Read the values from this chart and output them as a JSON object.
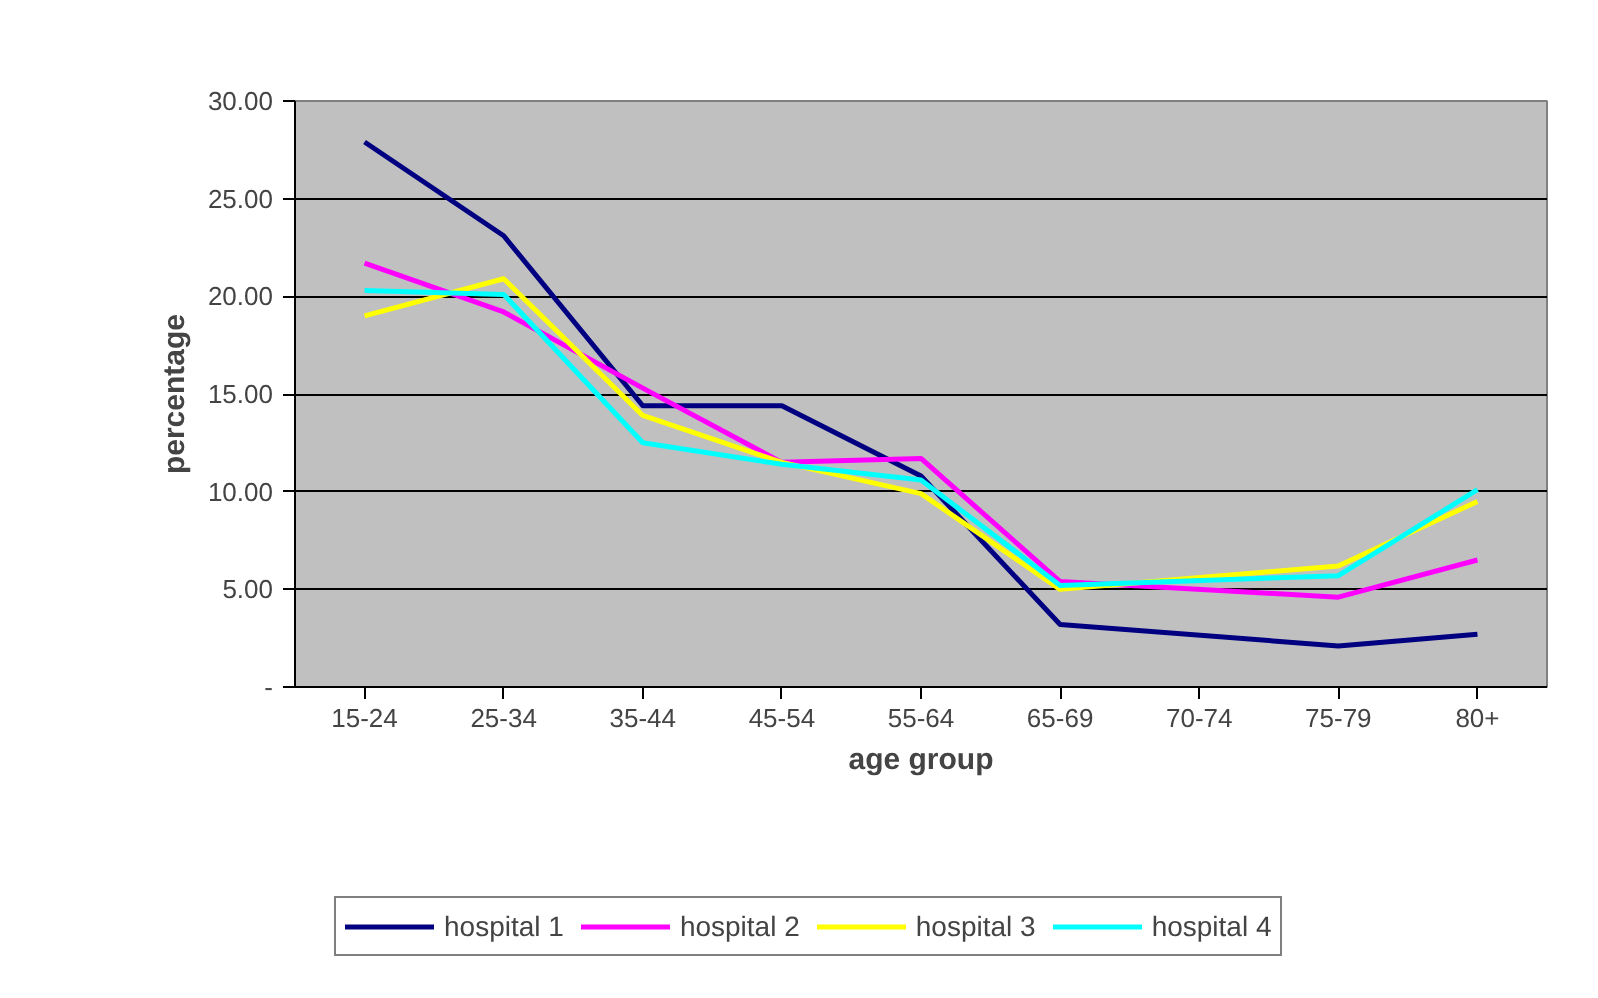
{
  "chart_data": {
    "type": "line",
    "xlabel": "age group",
    "ylabel": "percentage",
    "categories": [
      "15-24",
      "25-34",
      "35-44",
      "45-54",
      "55-64",
      "65-69",
      "70-74",
      "75-79",
      "80+"
    ],
    "ylim": [
      0,
      30
    ],
    "yticks": [
      {
        "value": 0,
        "label": "-"
      },
      {
        "value": 5,
        "label": "5.00"
      },
      {
        "value": 10,
        "label": "10.00"
      },
      {
        "value": 15,
        "label": "15.00"
      },
      {
        "value": 20,
        "label": "20.00"
      },
      {
        "value": 25,
        "label": "25.00"
      },
      {
        "value": 30,
        "label": "30.00"
      }
    ],
    "grid": "y",
    "legend": "bottom",
    "marker": "none",
    "line_style": "solid",
    "series": [
      {
        "name": "hospital 1",
        "color": "#000080",
        "values": [
          27.9,
          23.1,
          14.4,
          14.4,
          10.8,
          3.2,
          null,
          2.1,
          2.7
        ]
      },
      {
        "name": "hospital 2",
        "color": "#ff00ff",
        "values": [
          21.7,
          19.2,
          15.3,
          11.5,
          11.7,
          5.4,
          null,
          4.6,
          6.5
        ]
      },
      {
        "name": "hospital 3",
        "color": "#ffff00",
        "values": [
          19.0,
          20.9,
          13.9,
          11.5,
          9.9,
          5.0,
          null,
          6.2,
          9.5
        ]
      },
      {
        "name": "hospital 4",
        "color": "#00ffff",
        "values": [
          20.3,
          20.1,
          12.5,
          11.4,
          10.6,
          5.2,
          null,
          5.7,
          10.1
        ]
      }
    ]
  }
}
